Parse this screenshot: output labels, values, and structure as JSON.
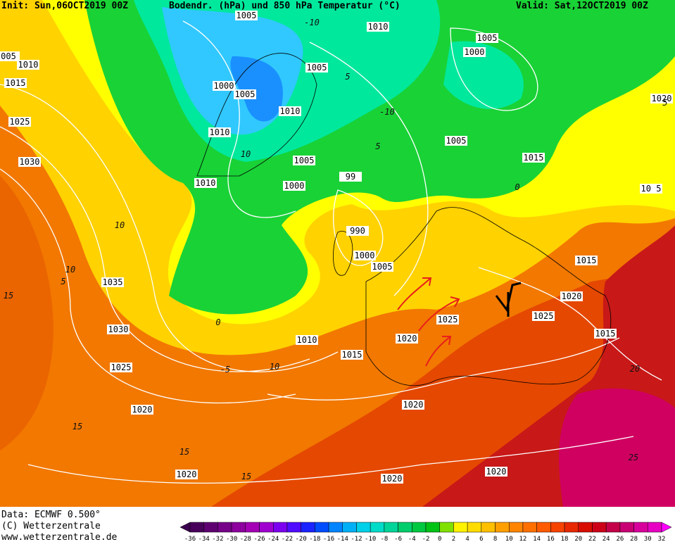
{
  "header": {
    "init": "Init: Sun,06OCT2019 00Z",
    "title": "Bodendr. (hPa) und 850 hPa Temperatur (°C)",
    "valid": "Valid: Sat,12OCT2019 00Z"
  },
  "footer": {
    "data": "Data: ECMWF  0.500°",
    "copyright": "(C) Wetterzentrale",
    "url": "www.wetterzentrale.de"
  },
  "colorbar": {
    "labels": [
      -36,
      -34,
      -32,
      -30,
      -28,
      -26,
      -24,
      -22,
      -20,
      -18,
      -16,
      -14,
      -12,
      -10,
      -8,
      -6,
      -4,
      -2,
      0,
      2,
      4,
      6,
      8,
      10,
      12,
      14,
      16,
      18,
      20,
      22,
      24,
      26,
      28,
      30,
      32
    ]
  },
  "isobar_labels": [
    "1005",
    "1010",
    "005",
    "1010",
    "1015",
    "1005",
    "1000",
    "1005",
    "1000",
    "1005",
    "1010",
    "1020",
    "1025",
    "1010",
    "1005",
    "1005",
    "1015",
    "1030",
    "1010",
    "1000",
    "99",
    "10 5",
    "990",
    "1000",
    "1005",
    "1015",
    "1035",
    "1020",
    "1025",
    "1025",
    "1030",
    "1015",
    "1020",
    "1010",
    "1015",
    "1025",
    "1020",
    "1020",
    "1020",
    "1020",
    "1020"
  ],
  "temperature_labels": [
    "-10",
    "5",
    "-10",
    "5",
    "10",
    "0",
    "5",
    "10",
    "10",
    "5",
    "15",
    "0",
    "-5",
    "10",
    "15",
    "15",
    "15",
    "20",
    "25"
  ]
}
